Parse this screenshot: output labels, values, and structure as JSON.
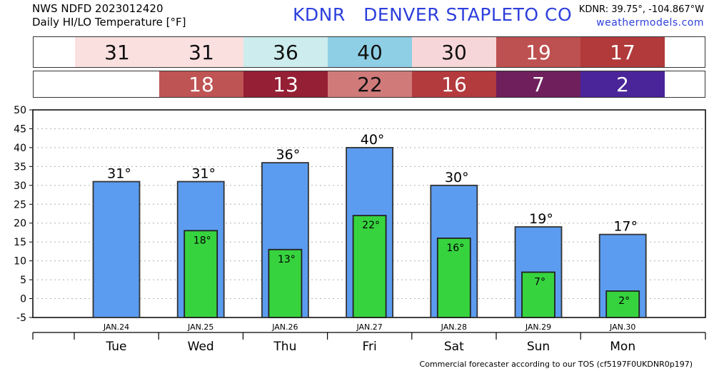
{
  "header": {
    "source": "NWS NDFD 2023012420",
    "subtitle": "Daily HI/LO Temperature [°F]",
    "station_id": "KDNR",
    "station_name": "DENVER STAPLETO CO",
    "coords": "KDNR: 39.75°, -104.867°W",
    "site": "weathermodels.com"
  },
  "footer": "Commercial forecaster according to our TOS (cf5197F0UKDNR0p197)",
  "colors": {
    "hi_bar": "#5b9cf0",
    "lo_bar": "#37d33f"
  },
  "hi_strip": [
    {
      "text": "31",
      "bg": "#fbe0e0",
      "fg": "#111111"
    },
    {
      "text": "31",
      "bg": "#fbe0e0",
      "fg": "#111111"
    },
    {
      "text": "36",
      "bg": "#cdeced",
      "fg": "#111111"
    },
    {
      "text": "40",
      "bg": "#8ecfe5",
      "fg": "#111111"
    },
    {
      "text": "30",
      "bg": "#f6d6d8",
      "fg": "#111111"
    },
    {
      "text": "19",
      "bg": "#bd5050",
      "fg": "#ffffff"
    },
    {
      "text": "17",
      "bg": "#b23a3a",
      "fg": "#ffffff"
    }
  ],
  "lo_strip": [
    {
      "text": "18",
      "bg": "#bf5454",
      "fg": "#ffffff"
    },
    {
      "text": "13",
      "bg": "#951f35",
      "fg": "#ffffff"
    },
    {
      "text": "22",
      "bg": "#d07a7a",
      "fg": "#111111"
    },
    {
      "text": "16",
      "bg": "#b33a3d",
      "fg": "#ffffff"
    },
    {
      "text": "7",
      "bg": "#6e1f5c",
      "fg": "#ffffff"
    },
    {
      "text": "2",
      "bg": "#4a2599",
      "fg": "#ffffff"
    }
  ],
  "chart_data": {
    "type": "bar",
    "title": "Daily HI/LO Temperature [°F]",
    "ylim": [
      -5,
      50
    ],
    "yticks": [
      -5,
      0,
      5,
      10,
      15,
      20,
      25,
      30,
      35,
      40,
      45,
      50
    ],
    "grid": true,
    "dates": [
      "JAN.24",
      "JAN.25",
      "JAN.26",
      "JAN.27",
      "JAN.28",
      "JAN.29",
      "JAN.30"
    ],
    "days": [
      "Tue",
      "Wed",
      "Thu",
      "Fri",
      "Sat",
      "Sun",
      "Mon"
    ],
    "series": [
      {
        "name": "HI",
        "values": [
          31,
          31,
          36,
          40,
          30,
          19,
          17
        ],
        "labels": [
          "31°",
          "31°",
          "36°",
          "40°",
          "30°",
          "19°",
          "17°"
        ]
      },
      {
        "name": "LO",
        "values": [
          null,
          18,
          13,
          22,
          16,
          7,
          2
        ],
        "labels": [
          "",
          "18°",
          "13°",
          "22°",
          "16°",
          "7°",
          "2°"
        ]
      }
    ]
  }
}
